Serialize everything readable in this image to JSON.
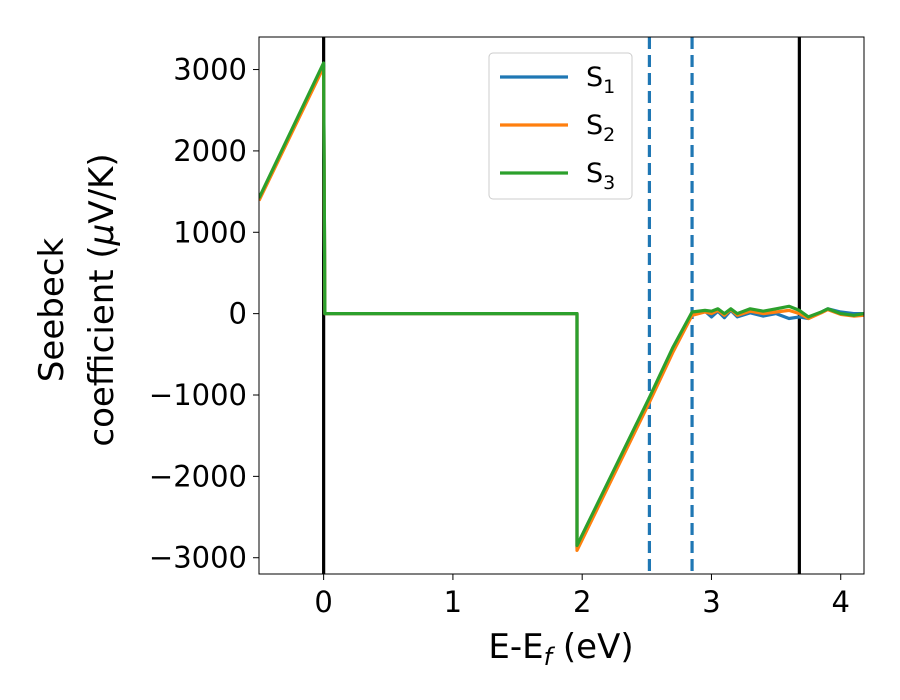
{
  "chart_data": {
    "type": "line",
    "xlabel": {
      "main": "E-E",
      "sub": "f",
      "unit": " (eV)"
    },
    "ylabel": {
      "line1": "Seebeck",
      "line2_pre": "coefficient  (",
      "mu": "μ",
      "line2_post": "V/K)"
    },
    "xlim": [
      -0.5,
      4.18
    ],
    "ylim": [
      -3200,
      3400
    ],
    "xticks": [
      0,
      1,
      2,
      3,
      4
    ],
    "xtick_labels": [
      "0",
      "1",
      "2",
      "3",
      "4"
    ],
    "yticks": [
      -3000,
      -2000,
      -1000,
      0,
      1000,
      2000,
      3000
    ],
    "ytick_labels": [
      "−3000",
      "−2000",
      "−1000",
      "0",
      "1000",
      "2000",
      "3000"
    ],
    "legend": {
      "position": "top-right"
    },
    "grid": false,
    "vlines_solid": [
      0,
      3.68
    ],
    "vlines_dashed": [
      2.52,
      2.85
    ],
    "vline_solid_color": "#000000",
    "vline_dashed_color": "#1f77b4",
    "series": [
      {
        "name": "S",
        "sub": "1",
        "color": "#1f77b4",
        "points": [
          [
            -0.5,
            1400
          ],
          [
            0,
            3050
          ],
          [
            0.01,
            0
          ],
          [
            1.96,
            0
          ],
          [
            1.96,
            -2880
          ],
          [
            2.2,
            -2100
          ],
          [
            2.52,
            -1060
          ],
          [
            2.7,
            -450
          ],
          [
            2.85,
            0
          ],
          [
            2.95,
            30
          ],
          [
            3.0,
            -40
          ],
          [
            3.05,
            30
          ],
          [
            3.1,
            -50
          ],
          [
            3.15,
            40
          ],
          [
            3.2,
            -40
          ],
          [
            3.3,
            10
          ],
          [
            3.4,
            -30
          ],
          [
            3.5,
            0
          ],
          [
            3.6,
            -60
          ],
          [
            3.68,
            -40
          ],
          [
            3.75,
            -60
          ],
          [
            3.85,
            20
          ],
          [
            3.9,
            60
          ],
          [
            4.0,
            20
          ],
          [
            4.1,
            0
          ],
          [
            4.18,
            0
          ]
        ]
      },
      {
        "name": "S",
        "sub": "2",
        "color": "#ff7f0e",
        "points": [
          [
            -0.5,
            1390
          ],
          [
            0,
            3030
          ],
          [
            0.01,
            0
          ],
          [
            1.96,
            0
          ],
          [
            1.96,
            -2910
          ],
          [
            2.2,
            -2130
          ],
          [
            2.52,
            -1090
          ],
          [
            2.7,
            -480
          ],
          [
            2.85,
            -20
          ],
          [
            2.95,
            20
          ],
          [
            3.0,
            0
          ],
          [
            3.05,
            40
          ],
          [
            3.1,
            -20
          ],
          [
            3.15,
            50
          ],
          [
            3.2,
            -20
          ],
          [
            3.3,
            30
          ],
          [
            3.4,
            0
          ],
          [
            3.5,
            20
          ],
          [
            3.6,
            40
          ],
          [
            3.68,
            0
          ],
          [
            3.75,
            -60
          ],
          [
            3.85,
            10
          ],
          [
            3.9,
            50
          ],
          [
            4.0,
            -10
          ],
          [
            4.1,
            -30
          ],
          [
            4.18,
            -20
          ]
        ]
      },
      {
        "name": "S",
        "sub": "3",
        "color": "#2ca02c",
        "points": [
          [
            -0.5,
            1420
          ],
          [
            0,
            3080
          ],
          [
            0.01,
            0
          ],
          [
            1.96,
            0
          ],
          [
            1.96,
            -2850
          ],
          [
            2.2,
            -2070
          ],
          [
            2.52,
            -1030
          ],
          [
            2.7,
            -420
          ],
          [
            2.85,
            20
          ],
          [
            2.95,
            40
          ],
          [
            3.0,
            30
          ],
          [
            3.05,
            60
          ],
          [
            3.1,
            0
          ],
          [
            3.15,
            60
          ],
          [
            3.2,
            0
          ],
          [
            3.3,
            60
          ],
          [
            3.4,
            30
          ],
          [
            3.5,
            60
          ],
          [
            3.6,
            90
          ],
          [
            3.68,
            40
          ],
          [
            3.75,
            -40
          ],
          [
            3.85,
            20
          ],
          [
            3.9,
            60
          ],
          [
            4.0,
            0
          ],
          [
            4.1,
            -20
          ],
          [
            4.18,
            0
          ]
        ]
      }
    ]
  }
}
